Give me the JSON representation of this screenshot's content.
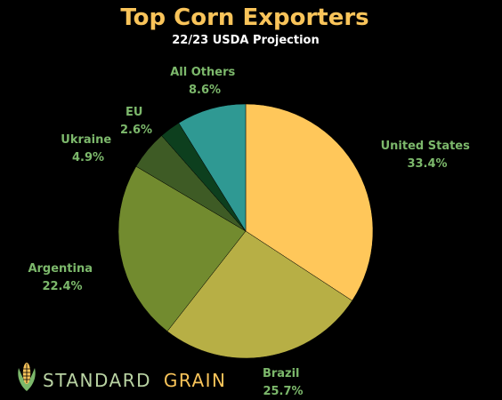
{
  "chart_data": {
    "type": "pie",
    "title": "Top Corn Exporters",
    "subtitle": "22/23 USDA Projection",
    "categories": [
      "United States",
      "Brazil",
      "Argentina",
      "Ukraine",
      "EU",
      "All Others"
    ],
    "values": [
      33.4,
      25.7,
      22.4,
      4.9,
      2.6,
      8.6
    ],
    "value_labels": [
      "33.4%",
      "25.7%",
      "22.4%",
      "4.9%",
      "2.6%",
      "8.6%"
    ],
    "colors": [
      "#FFC75A",
      "#B7AF45",
      "#728B2F",
      "#3E5B25",
      "#0D3F1E",
      "#2F9993"
    ],
    "start": "12 o'clock",
    "direction": "clockwise"
  },
  "colors": {
    "background": "#000000",
    "title": "#F9C45A",
    "subtitle": "#FFFFFF",
    "label": "#7CB86B",
    "brand_standard": "#B9D3A3",
    "brand_grain": "#F9C45A"
  },
  "brand": {
    "logo_icon": "corn-icon",
    "word1": "STANDARD",
    "word2": "GRAIN"
  }
}
